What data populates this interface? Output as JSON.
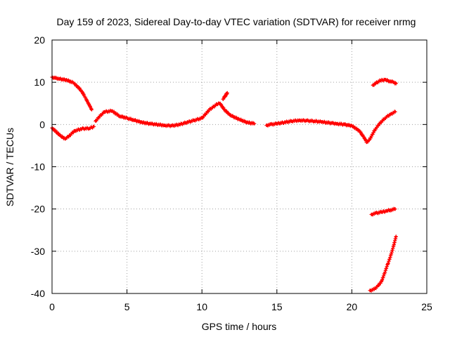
{
  "chart_data": {
    "type": "scatter",
    "title": "Day 159 of 2023, Sidereal Day-to-day VTEC variation (SDTVAR) for receiver nrmg",
    "xlabel": "GPS time / hours",
    "ylabel": "SDTVAR / TECUs",
    "xlim": [
      0,
      25
    ],
    "ylim": [
      -40,
      20
    ],
    "xticks": [
      0,
      5,
      10,
      15,
      20,
      25
    ],
    "yticks": [
      -40,
      -30,
      -20,
      -10,
      0,
      10,
      20
    ],
    "grid": true,
    "marker": "+",
    "color": "#ff0000",
    "series": [
      {
        "name": "track-high-start",
        "points": [
          [
            0,
            11.2
          ],
          [
            0.5,
            10.8
          ],
          [
            1.0,
            10.5
          ],
          [
            1.4,
            9.9
          ],
          [
            1.7,
            9.0
          ],
          [
            2.0,
            7.8
          ],
          [
            2.2,
            6.5
          ],
          [
            2.5,
            4.5
          ],
          [
            2.65,
            3.5
          ]
        ]
      },
      {
        "name": "track-low-start",
        "points": [
          [
            0,
            -0.8
          ],
          [
            0.3,
            -1.8
          ],
          [
            0.6,
            -2.8
          ],
          [
            0.9,
            -3.4
          ],
          [
            1.2,
            -2.5
          ],
          [
            1.5,
            -1.5
          ],
          [
            2.0,
            -1.0
          ],
          [
            2.5,
            -0.9
          ],
          [
            2.8,
            -0.5
          ]
        ]
      },
      {
        "name": "track-main",
        "points": [
          [
            2.9,
            0.8
          ],
          [
            3.2,
            2.0
          ],
          [
            3.5,
            3.0
          ],
          [
            4.0,
            3.2
          ],
          [
            4.5,
            2.0
          ],
          [
            5.0,
            1.5
          ],
          [
            5.5,
            1.0
          ],
          [
            6.0,
            0.5
          ],
          [
            6.5,
            0.2
          ],
          [
            7.0,
            0.0
          ],
          [
            7.5,
            -0.2
          ],
          [
            8.0,
            -0.3
          ],
          [
            8.5,
            0.0
          ],
          [
            9.0,
            0.5
          ],
          [
            9.5,
            1.0
          ],
          [
            10.0,
            1.5
          ],
          [
            10.5,
            3.5
          ],
          [
            11.0,
            4.8
          ],
          [
            11.2,
            5.0
          ],
          [
            11.5,
            3.5
          ],
          [
            11.8,
            2.5
          ],
          [
            12.0,
            2.0
          ],
          [
            12.5,
            1.2
          ],
          [
            13.0,
            0.5
          ],
          [
            13.5,
            0.2
          ]
        ]
      },
      {
        "name": "track-spikes",
        "points": [
          [
            11.5,
            6.5
          ],
          [
            11.6,
            7.0
          ],
          [
            11.7,
            7.5
          ],
          [
            11.4,
            6.0
          ]
        ]
      },
      {
        "name": "track-after-gap",
        "points": [
          [
            14.3,
            -0.2
          ],
          [
            14.6,
            0.0
          ],
          [
            15.0,
            0.2
          ],
          [
            15.5,
            0.5
          ],
          [
            16.0,
            0.8
          ],
          [
            16.5,
            1.0
          ],
          [
            17.0,
            0.9
          ],
          [
            17.5,
            0.8
          ],
          [
            18.0,
            0.6
          ],
          [
            18.5,
            0.4
          ],
          [
            19.0,
            0.2
          ],
          [
            19.5,
            0.0
          ],
          [
            20.0,
            -0.3
          ],
          [
            20.5,
            -1.5
          ],
          [
            20.8,
            -3.0
          ],
          [
            21.0,
            -4.2
          ],
          [
            21.2,
            -3.5
          ],
          [
            21.5,
            -1.5
          ],
          [
            21.8,
            0.0
          ],
          [
            22.2,
            1.5
          ],
          [
            22.6,
            2.5
          ],
          [
            22.9,
            3.0
          ]
        ]
      },
      {
        "name": "track-high-end",
        "points": [
          [
            21.4,
            9.3
          ],
          [
            21.6,
            9.8
          ],
          [
            21.9,
            10.4
          ],
          [
            22.2,
            10.6
          ],
          [
            22.5,
            10.3
          ],
          [
            22.8,
            10.0
          ],
          [
            22.95,
            9.7
          ]
        ]
      },
      {
        "name": "track-minus20",
        "points": [
          [
            21.3,
            -21.3
          ],
          [
            21.6,
            -21.0
          ],
          [
            22.0,
            -20.7
          ],
          [
            22.3,
            -20.5
          ],
          [
            22.6,
            -20.2
          ],
          [
            22.9,
            -20.0
          ]
        ]
      },
      {
        "name": "track-minus40",
        "points": [
          [
            21.2,
            -39.3
          ],
          [
            21.5,
            -39.0
          ],
          [
            21.8,
            -38.0
          ],
          [
            22.0,
            -37.0
          ],
          [
            22.2,
            -35.0
          ],
          [
            22.4,
            -33.0
          ],
          [
            22.6,
            -31.0
          ],
          [
            22.8,
            -28.5
          ],
          [
            22.95,
            -26.5
          ]
        ]
      }
    ]
  }
}
